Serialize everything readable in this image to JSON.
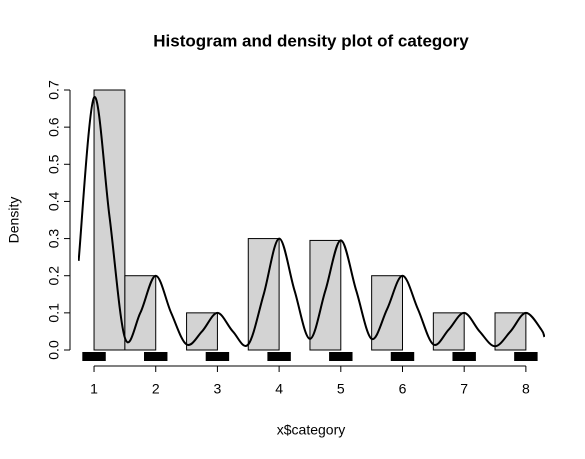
{
  "chart_data": {
    "type": "histogram",
    "title": "Histogram and density plot of category",
    "xlabel": "x$category",
    "ylabel": "Density",
    "bins": [
      1,
      1.5,
      2,
      2.5,
      3,
      3.5,
      4,
      4.5,
      5,
      5.5,
      6,
      6.5,
      7,
      7.5,
      8
    ],
    "values": [
      0.7,
      0.2,
      0,
      0.1,
      0,
      0.3,
      0,
      0.295,
      0,
      0.2,
      0,
      0.1,
      0,
      0.1
    ],
    "color": "#d3d3d3",
    "density": {
      "color": "#000000",
      "x": [
        0.75,
        1,
        1.25,
        1.5,
        1.75,
        2,
        2.25,
        2.5,
        2.75,
        3,
        3.25,
        3.5,
        3.75,
        4,
        4.25,
        4.5,
        4.75,
        5,
        5.25,
        5.5,
        5.75,
        6,
        6.25,
        6.5,
        6.75,
        7,
        7.25,
        7.5,
        7.75,
        8,
        8.25,
        8.3
      ],
      "y": [
        0.24,
        0.68,
        0.36,
        0.033,
        0.1,
        0.2,
        0.1,
        0.015,
        0.05,
        0.1,
        0.05,
        0.015,
        0.15,
        0.3,
        0.16,
        0.03,
        0.16,
        0.295,
        0.16,
        0.03,
        0.11,
        0.2,
        0.11,
        0.015,
        0.055,
        0.1,
        0.05,
        0.01,
        0.05,
        0.1,
        0.055,
        0.035
      ]
    },
    "rug": [
      1,
      2,
      3,
      4,
      5,
      6,
      7,
      8
    ],
    "xlim": [
      0.74,
      8.31
    ],
    "ylim": [
      0,
      0.7
    ],
    "xticks": [
      1,
      2,
      3,
      4,
      5,
      6,
      7,
      8
    ],
    "yticks": [
      {
        "value": 0,
        "label": "0.0"
      },
      0.1,
      0.2,
      0.3,
      0.4,
      0.5,
      0.6,
      0.7
    ]
  }
}
